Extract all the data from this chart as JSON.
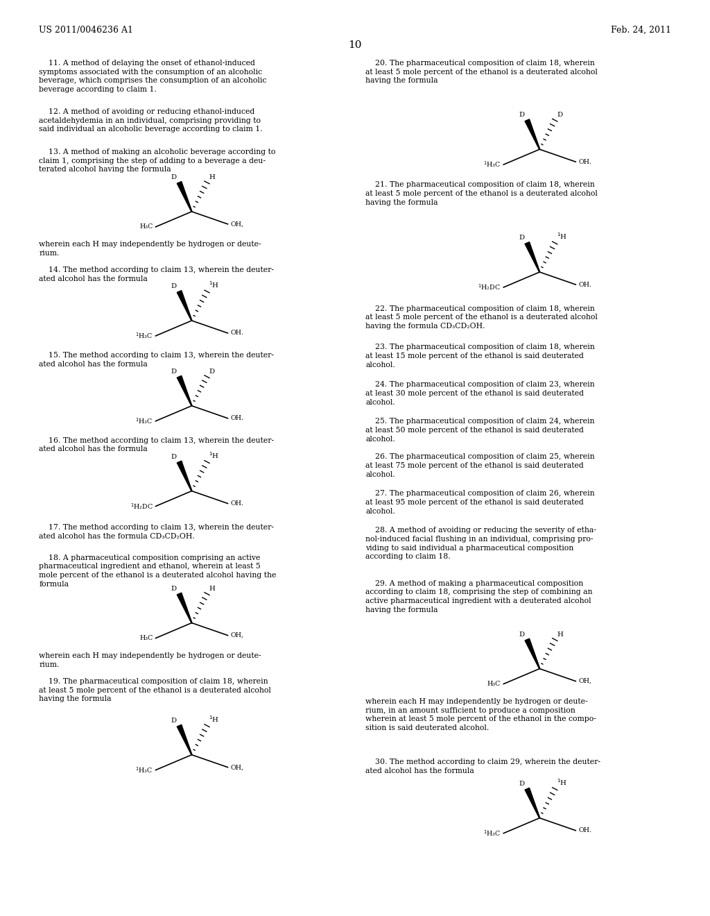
{
  "bg_color": "#ffffff",
  "header_left": "US 2011/0046236 A1",
  "header_right": "Feb. 24, 2011",
  "page_number": "10",
  "font_family": "DejaVu Serif",
  "body_font_size": 7.8,
  "header_font_size": 9.0
}
